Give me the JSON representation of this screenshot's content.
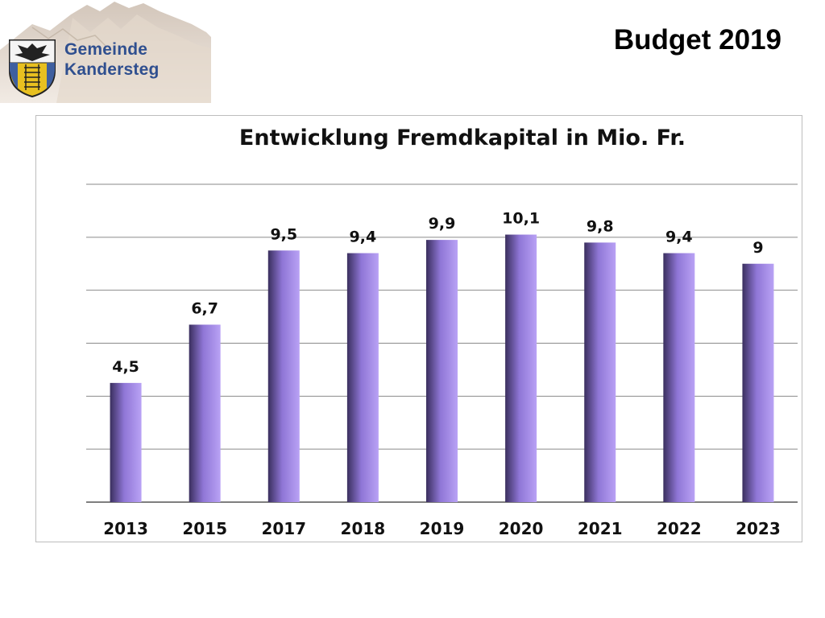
{
  "header": {
    "logo_line1": "Gemeinde",
    "logo_line2": "Kandersteg",
    "title": "Budget 2019"
  },
  "colors": {
    "bar_light": "#b9a2f5",
    "bar_dark": "#3a2f5e",
    "bar_mid": "#8f76d6",
    "grid": "#7f7f7f",
    "logo_text": "#2f4f8f",
    "shield_blue": "#3f5f9f",
    "shield_gold": "#e8c020"
  },
  "icons": {
    "logo": "kandersteg-coat-of-arms-icon"
  },
  "chart_data": {
    "type": "bar",
    "title": "Entwicklung Fremdkapital in Mio. Fr.",
    "categories": [
      "2013",
      "2015",
      "2017",
      "2018",
      "2019",
      "2020",
      "2021",
      "2022",
      "2023"
    ],
    "values": [
      4.5,
      6.7,
      9.5,
      9.4,
      9.9,
      10.1,
      9.8,
      9.4,
      9
    ],
    "data_labels": [
      "4,5",
      "6,7",
      "9,5",
      "9,4",
      "9,9",
      "10,1",
      "9,8",
      "9,4",
      "9"
    ],
    "ylim": [
      0,
      12
    ],
    "grid": true,
    "legend": "none",
    "xlabel": "",
    "ylabel": ""
  }
}
